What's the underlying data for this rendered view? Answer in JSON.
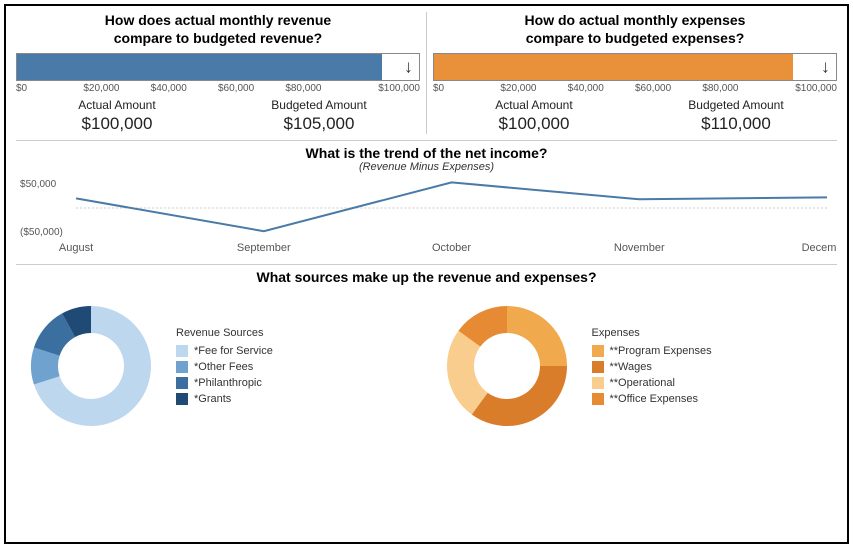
{
  "revenue_panel": {
    "question_line1": "How does actual monthly revenue",
    "question_line2": "compare to budgeted revenue?",
    "bar": {
      "actual": 100000,
      "budgeted": 105000,
      "axis_max": 110000,
      "fill_color": "#4a7aa7",
      "border_color": "#888888",
      "arrow": "↓"
    },
    "axis_ticks": [
      "$0",
      "$20,000",
      "$40,000",
      "$60,000",
      "$80,000",
      "$100,000"
    ],
    "actual_label": "Actual Amount",
    "budgeted_label": "Budgeted Amount",
    "actual_value": "$100,000",
    "budgeted_value": "$105,000"
  },
  "expense_panel": {
    "question_line1": "How do actual monthly expenses",
    "question_line2": "compare to budgeted expenses?",
    "bar": {
      "actual": 100000,
      "budgeted": 110000,
      "axis_max": 112000,
      "fill_color": "#e8903a",
      "border_color": "#888888",
      "arrow": "↓"
    },
    "axis_ticks": [
      "$0",
      "$20,000",
      "$40,000",
      "$60,000",
      "$80,000",
      "$100,000"
    ],
    "actual_label": "Actual Amount",
    "budgeted_label": "Budgeted Amount",
    "actual_value": "$100,000",
    "budgeted_value": "$110,000"
  },
  "trend": {
    "title": "What is the trend of the net income?",
    "subtitle": "(Revenue Minus Expenses)",
    "y_ticks": [
      {
        "label": "$50,000",
        "value": 50000
      },
      {
        "label": "($50,000)",
        "value": -50000
      }
    ],
    "y_min": -60000,
    "y_max": 60000,
    "zero_line_color": "#cccccc",
    "line_color": "#4a7aa7",
    "line_width": 2,
    "points": [
      {
        "label": "August",
        "value": 20000
      },
      {
        "label": "September",
        "value": -48000
      },
      {
        "label": "October",
        "value": 53000
      },
      {
        "label": "November",
        "value": 18000
      },
      {
        "label": "December",
        "value": 22000
      }
    ]
  },
  "donuts": {
    "title": "What sources make up the revenue and expenses?",
    "revenue": {
      "legend_title": "Revenue Sources",
      "inner_radius_ratio": 0.55,
      "slices": [
        {
          "label": "*Fee for Service",
          "value": 70,
          "color": "#bdd7ee"
        },
        {
          "label": "*Other Fees",
          "value": 10,
          "color": "#6fa2cf"
        },
        {
          "label": "*Philanthropic",
          "value": 12,
          "color": "#3b6fa0"
        },
        {
          "label": "*Grants",
          "value": 8,
          "color": "#1f4a76"
        }
      ]
    },
    "expenses": {
      "legend_title": "Expenses",
      "inner_radius_ratio": 0.55,
      "slices": [
        {
          "label": "**Program Expenses",
          "value": 25,
          "color": "#f0a94c"
        },
        {
          "label": "**Wages",
          "value": 35,
          "color": "#d97d2b"
        },
        {
          "label": "**Operational",
          "value": 25,
          "color": "#f8cd8e"
        },
        {
          "label": "**Office Expenses",
          "value": 15,
          "color": "#e68b33"
        }
      ]
    }
  },
  "colors": {
    "background": "#ffffff",
    "border": "#000000",
    "divider": "#cccccc",
    "text": "#000000",
    "muted_text": "#555555"
  }
}
